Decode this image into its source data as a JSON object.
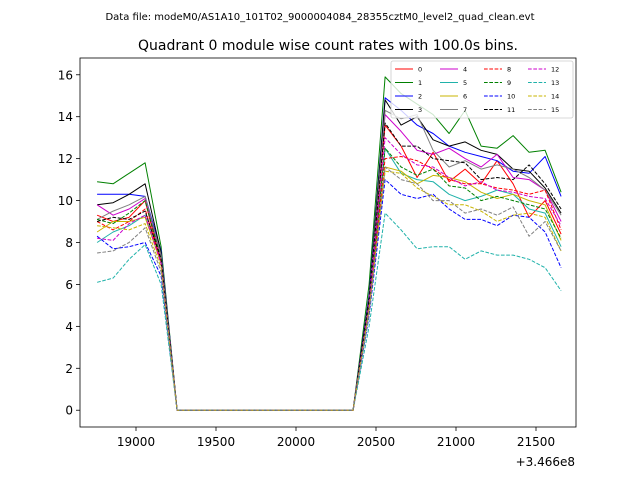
{
  "suptitle": "Data file: modeM0/AS1A10_101T02_9000004084_28355cztM0_level2_quad_clean.evt",
  "chart_data": {
    "type": "line",
    "title": "Quadrant 0 module wise count rates with 100.0s bins.",
    "xlabel": "",
    "ylabel": "",
    "offset_label": "+3.466e8",
    "xlim": [
      18650,
      21750
    ],
    "ylim": [
      -0.8,
      16.8
    ],
    "xticks": [
      19000,
      19500,
      20000,
      20500,
      21000,
      21500
    ],
    "xtick_labels": [
      "19000",
      "19500",
      "20000",
      "20500",
      "21000",
      "21500"
    ],
    "yticks": [
      0,
      2,
      4,
      6,
      8,
      10,
      12,
      14,
      16
    ],
    "ytick_labels": [
      "0",
      "2",
      "4",
      "6",
      "8",
      "10",
      "12",
      "14",
      "16"
    ],
    "legend_position": "top-right",
    "x": [
      18757,
      18857,
      18957,
      19057,
      19157,
      19257,
      19357,
      19457,
      19557,
      19657,
      19757,
      19857,
      19957,
      20057,
      20157,
      20257,
      20357,
      20457,
      20557,
      20657,
      20757,
      20857,
      20957,
      21057,
      21157,
      21257,
      21357,
      21457,
      21557,
      21657
    ],
    "series": [
      {
        "name": "0",
        "color": "#ff0000",
        "dash": "solid",
        "values": [
          9.3,
          9.0,
          9.2,
          10.0,
          7.0,
          0,
          0,
          0,
          0,
          0,
          0,
          0,
          0,
          0,
          0,
          0,
          0,
          5.0,
          13.6,
          12.6,
          11.1,
          12.3,
          10.9,
          11.5,
          10.8,
          11.9,
          10.8,
          9.2,
          10.0,
          8.4
        ]
      },
      {
        "name": "1",
        "color": "#008000",
        "dash": "solid",
        "values": [
          10.9,
          10.8,
          11.3,
          11.8,
          7.8,
          0,
          0,
          0,
          0,
          0,
          0,
          0,
          0,
          0,
          0,
          0,
          0,
          6.0,
          15.9,
          15.1,
          14.6,
          14.1,
          13.2,
          14.3,
          12.6,
          12.5,
          13.1,
          12.3,
          12.4,
          10.4
        ]
      },
      {
        "name": "2",
        "color": "#0000ff",
        "dash": "solid",
        "values": [
          10.3,
          10.3,
          10.3,
          10.2,
          7.6,
          0,
          0,
          0,
          0,
          0,
          0,
          0,
          0,
          0,
          0,
          0,
          0,
          5.5,
          14.9,
          14.3,
          13.6,
          13.2,
          12.6,
          12.3,
          12.1,
          11.9,
          11.4,
          11.3,
          12.1,
          10.2
        ]
      },
      {
        "name": "3",
        "color": "#000000",
        "dash": "solid",
        "values": [
          9.8,
          9.9,
          10.3,
          10.8,
          7.5,
          0,
          0,
          0,
          0,
          0,
          0,
          0,
          0,
          0,
          0,
          0,
          0,
          5.4,
          14.8,
          13.6,
          14.0,
          12.9,
          12.6,
          12.8,
          12.4,
          12.2,
          11.5,
          11.4,
          10.6,
          9.4
        ]
      },
      {
        "name": "4",
        "color": "#cc00cc",
        "dash": "solid",
        "values": [
          9.8,
          9.3,
          9.6,
          10.1,
          7.3,
          0,
          0,
          0,
          0,
          0,
          0,
          0,
          0,
          0,
          0,
          0,
          0,
          5.3,
          14.1,
          13.3,
          12.4,
          12.2,
          12.5,
          12.0,
          11.6,
          12.2,
          11.1,
          11.0,
          10.5,
          9.0
        ]
      },
      {
        "name": "5",
        "color": "#20b2aa",
        "dash": "solid",
        "values": [
          8.0,
          8.5,
          8.8,
          9.3,
          7.0,
          0,
          0,
          0,
          0,
          0,
          0,
          0,
          0,
          0,
          0,
          0,
          0,
          4.8,
          12.5,
          11.3,
          11.0,
          10.9,
          10.3,
          10.0,
          10.2,
          10.5,
          10.3,
          9.6,
          9.4,
          7.8
        ]
      },
      {
        "name": "6",
        "color": "#c8b400",
        "dash": "solid",
        "values": [
          8.5,
          9.0,
          9.0,
          9.2,
          7.0,
          0,
          0,
          0,
          0,
          0,
          0,
          0,
          0,
          0,
          0,
          0,
          0,
          5.0,
          11.6,
          11.4,
          10.8,
          11.2,
          11.1,
          10.9,
          10.4,
          10.1,
          10.3,
          10.0,
          9.8,
          8.1
        ]
      },
      {
        "name": "7",
        "color": "#808080",
        "dash": "solid",
        "values": [
          9.1,
          9.5,
          9.8,
          10.2,
          7.4,
          0,
          0,
          0,
          0,
          0,
          0,
          0,
          0,
          0,
          0,
          0,
          0,
          5.2,
          14.3,
          13.9,
          14.1,
          12.4,
          11.6,
          11.9,
          11.5,
          11.7,
          11.5,
          11.1,
          10.5,
          9.3
        ]
      },
      {
        "name": "8",
        "color": "#ff0000",
        "dash": "dashed",
        "values": [
          9.0,
          8.6,
          9.0,
          9.6,
          7.0,
          0,
          0,
          0,
          0,
          0,
          0,
          0,
          0,
          0,
          0,
          0,
          0,
          5.0,
          12.0,
          12.1,
          11.9,
          11.5,
          11.0,
          10.8,
          10.8,
          10.6,
          10.5,
          10.3,
          10.5,
          8.6
        ]
      },
      {
        "name": "9",
        "color": "#008000",
        "dash": "dashed",
        "values": [
          9.1,
          8.9,
          9.4,
          10.0,
          7.2,
          0,
          0,
          0,
          0,
          0,
          0,
          0,
          0,
          0,
          0,
          0,
          0,
          5.1,
          12.5,
          11.6,
          11.2,
          11.5,
          10.7,
          10.6,
          10.0,
          10.2,
          10.0,
          9.8,
          9.6,
          8.2
        ]
      },
      {
        "name": "10",
        "color": "#0000ff",
        "dash": "dashed",
        "values": [
          8.3,
          7.7,
          7.8,
          8.0,
          6.4,
          0,
          0,
          0,
          0,
          0,
          0,
          0,
          0,
          0,
          0,
          0,
          0,
          4.5,
          11.0,
          10.3,
          10.1,
          10.3,
          9.6,
          9.1,
          9.1,
          8.8,
          9.3,
          9.2,
          8.5,
          6.8
        ]
      },
      {
        "name": "11",
        "color": "#000000",
        "dash": "dashed",
        "values": [
          9.0,
          9.2,
          9.1,
          9.5,
          7.2,
          0,
          0,
          0,
          0,
          0,
          0,
          0,
          0,
          0,
          0,
          0,
          0,
          5.3,
          13.7,
          12.6,
          12.6,
          12.0,
          11.9,
          11.8,
          11.0,
          11.1,
          11.0,
          11.7,
          10.8,
          9.6
        ]
      },
      {
        "name": "12",
        "color": "#cc00cc",
        "dash": "dashed",
        "values": [
          8.2,
          8.1,
          8.9,
          9.3,
          7.0,
          0,
          0,
          0,
          0,
          0,
          0,
          0,
          0,
          0,
          0,
          0,
          0,
          5.0,
          13.0,
          12.2,
          11.7,
          11.6,
          11.1,
          10.7,
          10.9,
          10.5,
          10.4,
          10.2,
          10.1,
          8.8
        ]
      },
      {
        "name": "13",
        "color": "#20b2aa",
        "dash": "dashed",
        "values": [
          6.1,
          6.3,
          7.2,
          7.9,
          6.0,
          0,
          0,
          0,
          0,
          0,
          0,
          0,
          0,
          0,
          0,
          0,
          0,
          4.0,
          9.4,
          8.6,
          7.7,
          7.8,
          7.8,
          7.2,
          7.6,
          7.4,
          7.4,
          7.2,
          6.8,
          5.7
        ]
      },
      {
        "name": "14",
        "color": "#c8b400",
        "dash": "dashed",
        "values": [
          8.8,
          8.7,
          8.6,
          8.9,
          6.8,
          0,
          0,
          0,
          0,
          0,
          0,
          0,
          0,
          0,
          0,
          0,
          0,
          4.8,
          11.4,
          11.3,
          10.6,
          10.2,
          9.8,
          9.8,
          9.5,
          9.0,
          9.3,
          9.4,
          9.2,
          7.6
        ]
      },
      {
        "name": "15",
        "color": "#808080",
        "dash": "dashed",
        "values": [
          7.5,
          7.6,
          8.0,
          8.7,
          6.6,
          0,
          0,
          0,
          0,
          0,
          0,
          0,
          0,
          0,
          0,
          0,
          0,
          4.6,
          11.6,
          11.0,
          10.8,
          10.0,
          10.0,
          9.4,
          9.6,
          9.3,
          9.7,
          8.3,
          9.0,
          7.6
        ]
      }
    ]
  }
}
